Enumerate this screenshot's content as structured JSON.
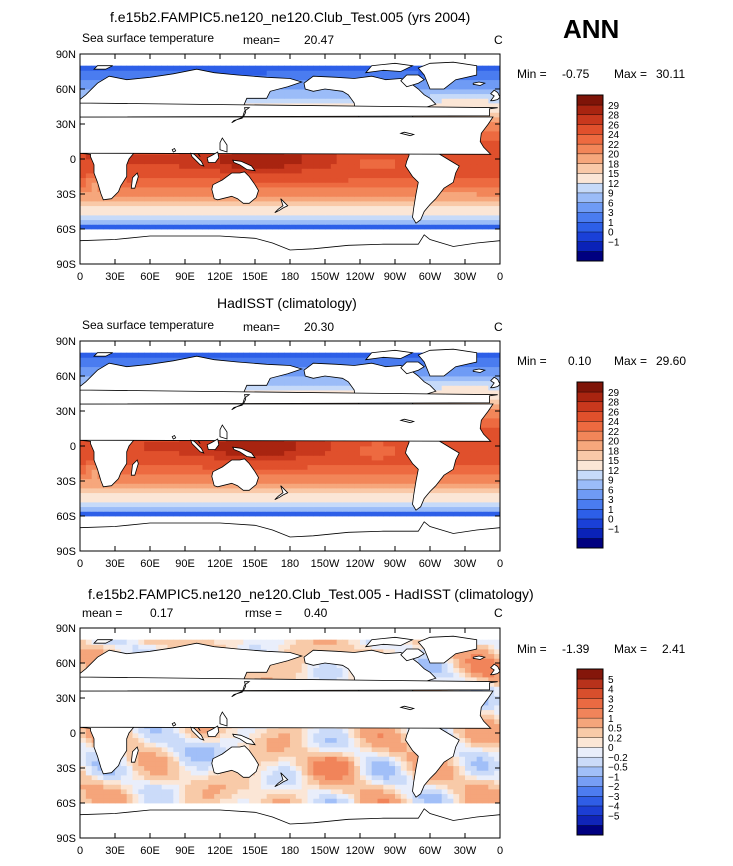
{
  "season_label": "ANN",
  "colors": {
    "sst": [
      "#000080",
      "#0a22b8",
      "#1a40d8",
      "#2d5fe8",
      "#4a7cf0",
      "#6f9bf5",
      "#9bbcf8",
      "#c6daf9",
      "#fbe6d6",
      "#f9c9a8",
      "#f6a77c",
      "#f28659",
      "#ed6a40",
      "#e0502c",
      "#c8381d",
      "#a82410",
      "#7e1408"
    ],
    "diff": [
      "#000080",
      "#1024b8",
      "#1c3ed4",
      "#2f5de6",
      "#4d7cf0",
      "#779ef5",
      "#a1bff8",
      "#cbdbf9",
      "#e9eefb",
      "#fbe6d6",
      "#f8caa8",
      "#f5a57b",
      "#f1845a",
      "#ea6a42",
      "#d84f2c",
      "#b8321b",
      "#84160a"
    ],
    "land": "#ffffff",
    "coast": "#000000"
  },
  "chart_data": [
    {
      "type": "heatmap",
      "title": "f.e15b2.FAMPIC5.ne120_ne120.Club_Test.005 (yrs 2004)",
      "left_label": "Sea surface temperature",
      "mean_label": "mean=",
      "mean_value": "20.47",
      "units": "C",
      "min_label": "Min =",
      "min_value": "-0.75",
      "max_label": "Max =",
      "max_value": "30.11",
      "colorbar_levels": [
        "29",
        "28",
        "26",
        "24",
        "22",
        "20",
        "18",
        "15",
        "12",
        "9",
        "6",
        "3",
        "1",
        "0",
        "−1"
      ],
      "y_ticks": [
        "90N",
        "60N",
        "30N",
        "0",
        "30S",
        "60S",
        "90S"
      ],
      "x_ticks": [
        "0",
        "30E",
        "60E",
        "90E",
        "120E",
        "150E",
        "180",
        "150W",
        "120W",
        "90W",
        "60W",
        "30W",
        "0"
      ],
      "lon_range": [
        0,
        360
      ],
      "lat_range": [
        -90,
        90
      ]
    },
    {
      "type": "heatmap",
      "title": "HadISST (climatology)",
      "left_label": "Sea surface temperature",
      "mean_label": "mean=",
      "mean_value": "20.30",
      "units": "C",
      "min_label": "Min =",
      "min_value": "0.10",
      "max_label": "Max =",
      "max_value": "29.60",
      "colorbar_levels": [
        "29",
        "28",
        "26",
        "24",
        "22",
        "20",
        "18",
        "15",
        "12",
        "9",
        "6",
        "3",
        "1",
        "0",
        "−1"
      ],
      "y_ticks": [
        "90N",
        "60N",
        "30N",
        "0",
        "30S",
        "60S",
        "90S"
      ],
      "x_ticks": [
        "0",
        "30E",
        "60E",
        "90E",
        "120E",
        "150E",
        "180",
        "150W",
        "120W",
        "90W",
        "60W",
        "30W",
        "0"
      ],
      "lon_range": [
        0,
        360
      ],
      "lat_range": [
        -90,
        90
      ]
    },
    {
      "type": "heatmap",
      "title": "f.e15b2.FAMPIC5.ne120_ne120.Club_Test.005 - HadISST (climatology)",
      "left_label": "",
      "mean_label": "mean =",
      "mean_value": "0.17",
      "rmse_label": "rmse =",
      "rmse_value": "0.40",
      "units": "C",
      "min_label": "Min =",
      "min_value": "-1.39",
      "max_label": "Max =",
      "max_value": "2.41",
      "colorbar_levels": [
        "5",
        "4",
        "3",
        "2",
        "1",
        "0.5",
        "0.2",
        "0",
        "−0.2",
        "−0.5",
        "−1",
        "−2",
        "−3",
        "−4",
        "−5"
      ],
      "y_ticks": [
        "90N",
        "60N",
        "30N",
        "0",
        "30S",
        "60S",
        "90S"
      ],
      "x_ticks": [
        "0",
        "30E",
        "60E",
        "90E",
        "120E",
        "150E",
        "180",
        "150W",
        "120W",
        "90W",
        "60W",
        "30W",
        "0"
      ],
      "lon_range": [
        0,
        360
      ],
      "lat_range": [
        -90,
        90
      ]
    }
  ]
}
